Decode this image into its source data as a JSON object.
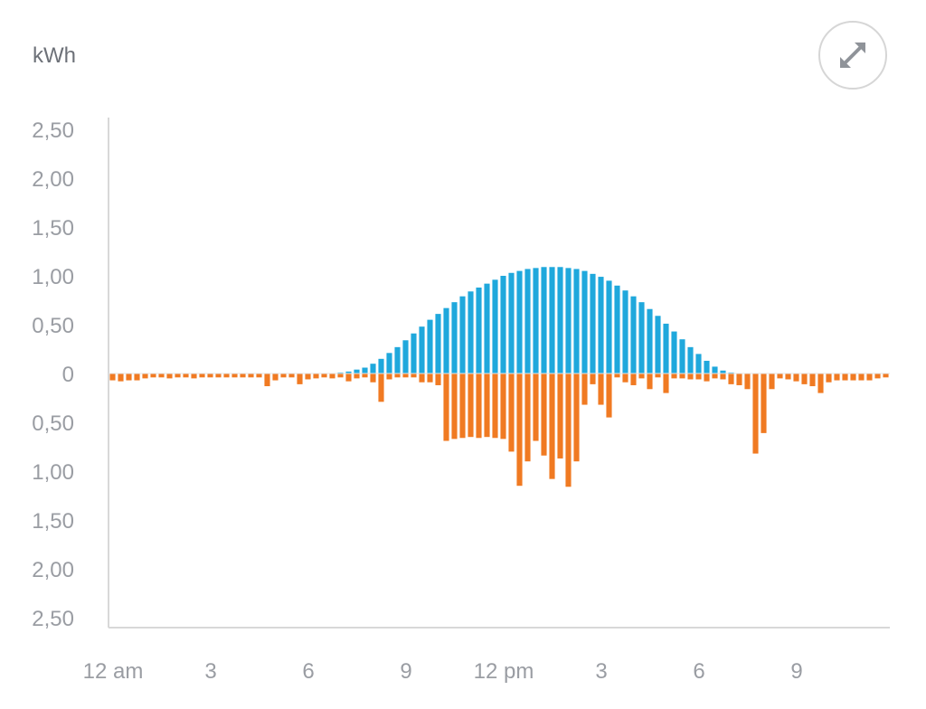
{
  "unit_label": "kWh",
  "expand_icon": "expand-arrows-icon",
  "colors": {
    "production": "#1fa8dc",
    "consumption": "#f07a22",
    "axis": "#d8d8d8",
    "text": "#9a9da3"
  },
  "chart_data": {
    "type": "bar",
    "ylabel": "kWh",
    "ylim": [
      -2.5,
      2.5
    ],
    "y_ticks": [
      {
        "value": 2.5,
        "label": "2,50"
      },
      {
        "value": 2.0,
        "label": "2,00"
      },
      {
        "value": 1.5,
        "label": "1,50"
      },
      {
        "value": 1.0,
        "label": "1,00"
      },
      {
        "value": 0.5,
        "label": "0,50"
      },
      {
        "value": 0,
        "label": "0"
      },
      {
        "value": -0.5,
        "label": "0,50"
      },
      {
        "value": -1.0,
        "label": "1,00"
      },
      {
        "value": -1.5,
        "label": "1,50"
      },
      {
        "value": -2.0,
        "label": "2,00"
      },
      {
        "value": -2.5,
        "label": "2,50"
      }
    ],
    "x_interval_minutes": 15,
    "x_ticks": [
      {
        "hour": 0,
        "label": "12 am"
      },
      {
        "hour": 3,
        "label": "3"
      },
      {
        "hour": 6,
        "label": "6"
      },
      {
        "hour": 9,
        "label": "9"
      },
      {
        "hour": 12,
        "label": "12 pm"
      },
      {
        "hour": 15,
        "label": "3"
      },
      {
        "hour": 18,
        "label": "6"
      },
      {
        "hour": 21,
        "label": "9"
      }
    ],
    "series": [
      {
        "values": [
          0,
          0,
          0,
          0,
          0,
          0,
          0,
          0,
          0,
          0,
          0,
          0,
          0,
          0,
          0,
          0,
          0,
          0,
          0,
          0,
          0,
          0,
          0,
          0,
          0,
          0,
          0,
          0,
          0.01,
          0.02,
          0.04,
          0.06,
          0.1,
          0.15,
          0.21,
          0.27,
          0.34,
          0.41,
          0.48,
          0.55,
          0.61,
          0.67,
          0.73,
          0.79,
          0.84,
          0.88,
          0.92,
          0.96,
          1.0,
          1.03,
          1.05,
          1.07,
          1.08,
          1.09,
          1.09,
          1.09,
          1.08,
          1.07,
          1.05,
          1.02,
          0.99,
          0.95,
          0.9,
          0.85,
          0.79,
          0.73,
          0.66,
          0.59,
          0.51,
          0.43,
          0.35,
          0.27,
          0.2,
          0.13,
          0.07,
          0.03,
          0.01,
          0,
          0,
          0,
          0,
          0,
          0,
          0,
          0,
          0,
          0,
          0,
          0,
          0,
          0,
          0,
          0,
          0,
          0,
          0
        ]
      },
      {
        "values": [
          -0.07,
          -0.08,
          -0.07,
          -0.07,
          -0.05,
          -0.04,
          -0.04,
          -0.05,
          -0.04,
          -0.04,
          -0.05,
          -0.04,
          -0.04,
          -0.04,
          -0.04,
          -0.04,
          -0.04,
          -0.04,
          -0.04,
          -0.13,
          -0.07,
          -0.04,
          -0.04,
          -0.11,
          -0.06,
          -0.05,
          -0.04,
          -0.05,
          -0.04,
          -0.08,
          -0.05,
          -0.04,
          -0.09,
          -0.29,
          -0.06,
          -0.04,
          -0.04,
          -0.04,
          -0.09,
          -0.09,
          -0.12,
          -0.69,
          -0.67,
          -0.66,
          -0.65,
          -0.66,
          -0.65,
          -0.66,
          -0.67,
          -0.8,
          -1.15,
          -0.9,
          -0.69,
          -0.84,
          -1.08,
          -0.87,
          -1.16,
          -0.9,
          -0.32,
          -0.11,
          -0.32,
          -0.45,
          -0.04,
          -0.09,
          -0.12,
          -0.05,
          -0.16,
          -0.04,
          -0.2,
          -0.05,
          -0.05,
          -0.06,
          -0.06,
          -0.08,
          -0.05,
          -0.06,
          -0.11,
          -0.12,
          -0.16,
          -0.82,
          -0.61,
          -0.16,
          -0.05,
          -0.06,
          -0.08,
          -0.11,
          -0.13,
          -0.2,
          -0.09,
          -0.07,
          -0.07,
          -0.07,
          -0.07,
          -0.07,
          -0.05,
          -0.04
        ]
      }
    ]
  }
}
